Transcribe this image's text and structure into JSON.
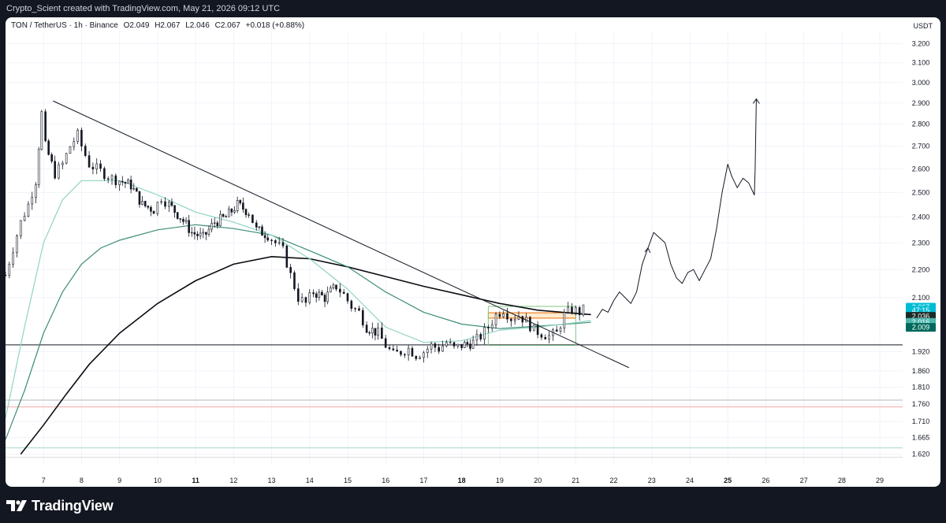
{
  "header": {
    "attribution": "Crypto_Scient created with TradingView.com, May 21, 2026 09:12 UTC"
  },
  "legend": {
    "symbol": "TON / TetherUS · 1h · Binance",
    "open": "O2.049",
    "high": "H2.067",
    "low": "L2.046",
    "close": "C2.067",
    "change": "+0.018 (+0.88%)"
  },
  "price_axis": {
    "currency": "USDT",
    "ticks": [
      "3.200",
      "3.100",
      "3.000",
      "2.900",
      "2.800",
      "2.700",
      "2.600",
      "2.500",
      "2.400",
      "2.300",
      "2.200",
      "2.100",
      "1.920",
      "1.860",
      "1.810",
      "1.760",
      "1.710",
      "1.665",
      "1.620"
    ],
    "badges": [
      {
        "label": "2.067",
        "value": 2.067,
        "bg": "#00bcd4",
        "fg": "#ffffff"
      },
      {
        "label": "47:15",
        "value": 2.056,
        "bg": "#00bcd4",
        "fg": "#ffffff"
      },
      {
        "label": "2.036",
        "value": 2.036,
        "bg": "#1b2a26",
        "fg": "#ffffff"
      },
      {
        "label": "2.016",
        "value": 2.016,
        "bg": "#4db6ac",
        "fg": "#ffffff"
      },
      {
        "label": "2.009",
        "value": 1.999,
        "bg": "#00695c",
        "fg": "#ffffff"
      }
    ]
  },
  "time_axis": {
    "ticks": [
      {
        "label": "7",
        "day": 7,
        "bold": false
      },
      {
        "label": "8",
        "day": 8,
        "bold": false
      },
      {
        "label": "9",
        "day": 9,
        "bold": false
      },
      {
        "label": "10",
        "day": 10,
        "bold": false
      },
      {
        "label": "11",
        "day": 11,
        "bold": true
      },
      {
        "label": "12",
        "day": 12,
        "bold": false
      },
      {
        "label": "13",
        "day": 13,
        "bold": false
      },
      {
        "label": "14",
        "day": 14,
        "bold": false
      },
      {
        "label": "15",
        "day": 15,
        "bold": false
      },
      {
        "label": "16",
        "day": 16,
        "bold": false
      },
      {
        "label": "17",
        "day": 17,
        "bold": false
      },
      {
        "label": "18",
        "day": 18,
        "bold": true
      },
      {
        "label": "19",
        "day": 19,
        "bold": false
      },
      {
        "label": "20",
        "day": 20,
        "bold": false
      },
      {
        "label": "21",
        "day": 21,
        "bold": false
      },
      {
        "label": "22",
        "day": 22,
        "bold": false
      },
      {
        "label": "23",
        "day": 23,
        "bold": false
      },
      {
        "label": "24",
        "day": 24,
        "bold": false
      },
      {
        "label": "25",
        "day": 25,
        "bold": true
      },
      {
        "label": "26",
        "day": 26,
        "bold": false
      },
      {
        "label": "27",
        "day": 27,
        "bold": false
      },
      {
        "label": "28",
        "day": 28,
        "bold": false
      },
      {
        "label": "29",
        "day": 29,
        "bold": false
      }
    ]
  },
  "footer": {
    "brand": "TradingView"
  },
  "chart_data": {
    "type": "line",
    "candles_anchor_close": [
      [
        6.0,
        2.18
      ],
      [
        6.2,
        2.28
      ],
      [
        6.4,
        2.38
      ],
      [
        6.6,
        2.45
      ],
      [
        6.8,
        2.55
      ],
      [
        6.95,
        2.85
      ],
      [
        7.05,
        2.7
      ],
      [
        7.3,
        2.58
      ],
      [
        7.5,
        2.62
      ],
      [
        7.7,
        2.7
      ],
      [
        7.9,
        2.75
      ],
      [
        8.0,
        2.7
      ],
      [
        8.2,
        2.62
      ],
      [
        8.4,
        2.6
      ],
      [
        8.6,
        2.58
      ],
      [
        8.8,
        2.56
      ],
      [
        9.0,
        2.55
      ],
      [
        9.3,
        2.53
      ],
      [
        9.6,
        2.45
      ],
      [
        9.9,
        2.43
      ],
      [
        10.1,
        2.48
      ],
      [
        10.3,
        2.45
      ],
      [
        10.6,
        2.4
      ],
      [
        10.9,
        2.34
      ],
      [
        11.2,
        2.32
      ],
      [
        11.5,
        2.38
      ],
      [
        11.8,
        2.4
      ],
      [
        12.1,
        2.45
      ],
      [
        12.4,
        2.42
      ],
      [
        12.6,
        2.35
      ],
      [
        12.9,
        2.33
      ],
      [
        13.1,
        2.3
      ],
      [
        13.3,
        2.27
      ],
      [
        13.5,
        2.18
      ],
      [
        13.7,
        2.1
      ],
      [
        13.9,
        2.08
      ],
      [
        14.1,
        2.12
      ],
      [
        14.4,
        2.1
      ],
      [
        14.7,
        2.14
      ],
      [
        14.9,
        2.11
      ],
      [
        15.1,
        2.07
      ],
      [
        15.3,
        2.05
      ],
      [
        15.5,
        2.0
      ],
      [
        15.8,
        1.98
      ],
      [
        16.0,
        1.94
      ],
      [
        16.2,
        1.91
      ],
      [
        16.4,
        1.92
      ],
      [
        16.6,
        1.93
      ],
      [
        16.8,
        1.91
      ],
      [
        17.0,
        1.92
      ],
      [
        17.2,
        1.94
      ],
      [
        17.4,
        1.93
      ],
      [
        17.6,
        1.95
      ],
      [
        17.8,
        1.93
      ],
      [
        18.0,
        1.94
      ],
      [
        18.3,
        1.95
      ],
      [
        18.5,
        1.97
      ],
      [
        18.7,
        2.0
      ],
      [
        18.9,
        2.04
      ],
      [
        19.1,
        2.06
      ],
      [
        19.3,
        2.03
      ],
      [
        19.5,
        2.04
      ],
      [
        19.7,
        2.02
      ],
      [
        19.9,
        1.99
      ],
      [
        20.1,
        1.98
      ],
      [
        20.3,
        1.97
      ],
      [
        20.5,
        1.98
      ],
      [
        20.7,
        2.04
      ],
      [
        20.9,
        2.06
      ],
      [
        21.1,
        2.05
      ],
      [
        21.3,
        2.067
      ]
    ],
    "moving_averages": [
      {
        "name": "",
        "color": "#0b0d12",
        "points": [
          [
            6.4,
            1.62
          ],
          [
            7.0,
            1.7
          ],
          [
            7.6,
            1.79
          ],
          [
            8.2,
            1.88
          ],
          [
            9.0,
            1.98
          ],
          [
            10.0,
            2.08
          ],
          [
            11.0,
            2.16
          ],
          [
            12.0,
            2.22
          ],
          [
            13.0,
            2.248
          ],
          [
            14.0,
            2.24
          ],
          [
            15.0,
            2.21
          ],
          [
            16.0,
            2.175
          ],
          [
            17.0,
            2.14
          ],
          [
            18.0,
            2.11
          ],
          [
            19.0,
            2.08
          ],
          [
            20.0,
            2.057
          ],
          [
            21.0,
            2.046
          ],
          [
            21.4,
            2.042
          ]
        ]
      },
      {
        "name": "",
        "color": "#3d8c78",
        "points": [
          [
            6.0,
            1.66
          ],
          [
            6.5,
            1.8
          ],
          [
            7.0,
            1.98
          ],
          [
            7.5,
            2.12
          ],
          [
            8.0,
            2.22
          ],
          [
            8.5,
            2.28
          ],
          [
            9.0,
            2.31
          ],
          [
            10.0,
            2.35
          ],
          [
            11.0,
            2.37
          ],
          [
            12.0,
            2.355
          ],
          [
            13.0,
            2.33
          ],
          [
            14.0,
            2.27
          ],
          [
            15.0,
            2.21
          ],
          [
            16.0,
            2.12
          ],
          [
            17.0,
            2.05
          ],
          [
            18.0,
            2.01
          ],
          [
            19.0,
            1.995
          ],
          [
            20.0,
            2.003
          ],
          [
            21.0,
            2.012
          ],
          [
            21.4,
            2.016
          ]
        ]
      },
      {
        "name": "",
        "color": "#8fd4c1",
        "points": [
          [
            6.0,
            1.72
          ],
          [
            6.5,
            2.0
          ],
          [
            7.0,
            2.3
          ],
          [
            7.5,
            2.47
          ],
          [
            8.0,
            2.55
          ],
          [
            9.0,
            2.55
          ],
          [
            10.0,
            2.49
          ],
          [
            11.0,
            2.42
          ],
          [
            12.0,
            2.38
          ],
          [
            13.0,
            2.33
          ],
          [
            14.0,
            2.24
          ],
          [
            15.0,
            2.13
          ],
          [
            16.0,
            2.0
          ],
          [
            17.0,
            1.95
          ],
          [
            18.0,
            1.955
          ],
          [
            19.0,
            1.99
          ],
          [
            20.0,
            2.0
          ],
          [
            21.0,
            2.015
          ],
          [
            21.4,
            2.022
          ]
        ]
      }
    ],
    "trendline": {
      "from": [
        7.25,
        2.91
      ],
      "to": [
        22.4,
        1.87
      ]
    },
    "horizontal_lines": [
      {
        "value": 1.942,
        "color": "#131722"
      },
      {
        "value": 1.772,
        "color": "#b2b5be"
      },
      {
        "value": 1.752,
        "color": "#f4a6a6"
      },
      {
        "value": 1.637,
        "color": "#a7d8cc"
      },
      {
        "value": 1.612,
        "color": "#dcdcdc"
      }
    ],
    "zones": [
      {
        "x0": 18.7,
        "x1": 21.0,
        "y0": 2.03,
        "y1": 2.048,
        "fill": "#ffe0b2",
        "stroke": "#ef6c00"
      },
      {
        "x0": 18.7,
        "x1": 21.0,
        "y0": 1.94,
        "y1": 2.07,
        "fill": "none",
        "stroke": "#81c784"
      }
    ],
    "forecast_path": [
      [
        21.55,
        2.03
      ],
      [
        21.7,
        2.06
      ],
      [
        21.85,
        2.05
      ],
      [
        22.0,
        2.09
      ],
      [
        22.15,
        2.12
      ],
      [
        22.3,
        2.1
      ],
      [
        22.45,
        2.08
      ],
      [
        22.6,
        2.12
      ],
      [
        22.75,
        2.22
      ],
      [
        22.9,
        2.28
      ],
      [
        23.05,
        2.34
      ],
      [
        23.2,
        2.32
      ],
      [
        23.35,
        2.3
      ],
      [
        23.5,
        2.22
      ],
      [
        23.65,
        2.17
      ],
      [
        23.8,
        2.15
      ],
      [
        23.95,
        2.19
      ],
      [
        24.1,
        2.2
      ],
      [
        24.25,
        2.16
      ],
      [
        24.4,
        2.2
      ],
      [
        24.55,
        2.24
      ],
      [
        24.7,
        2.35
      ],
      [
        24.85,
        2.5
      ],
      [
        25.0,
        2.62
      ],
      [
        25.1,
        2.57
      ],
      [
        25.25,
        2.52
      ],
      [
        25.4,
        2.56
      ],
      [
        25.55,
        2.54
      ],
      [
        25.7,
        2.49
      ],
      [
        25.72,
        2.6
      ],
      [
        25.75,
        2.92
      ]
    ],
    "x_range": [
      6.0,
      29.6
    ],
    "y_range": [
      1.592,
      3.265
    ],
    "y_scale": "log",
    "grid": true
  }
}
